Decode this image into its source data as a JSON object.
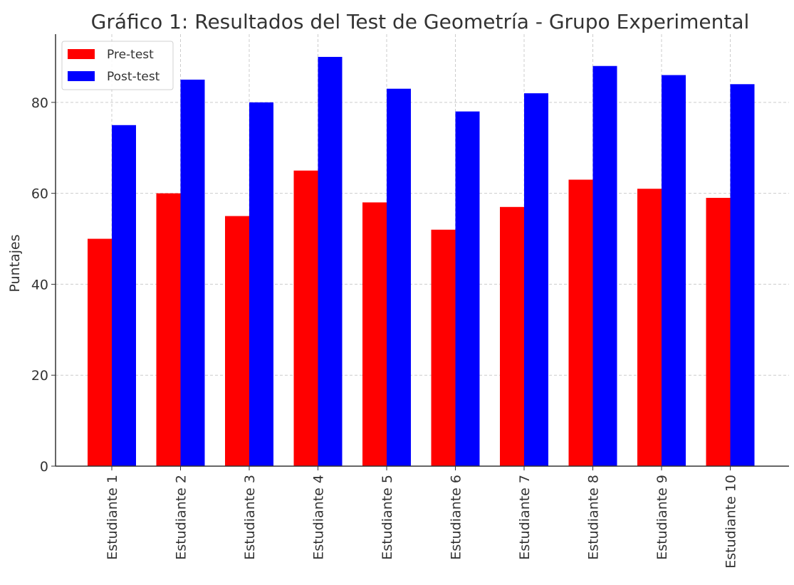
{
  "chart_data": {
    "type": "bar",
    "title": "Gráfico 1: Resultados del Test de Geometría - Grupo Experimental",
    "y_label": "Puntajes",
    "categories": [
      "Estudiante 1",
      "Estudiante 2",
      "Estudiante 3",
      "Estudiante 4",
      "Estudiante 5",
      "Estudiante 6",
      "Estudiante 7",
      "Estudiante 8",
      "Estudiante 9",
      "Estudiante 10"
    ],
    "series": [
      {
        "name": "Pre-test",
        "color": "#ff0000",
        "values": [
          50,
          60,
          55,
          65,
          58,
          52,
          57,
          63,
          61,
          59
        ]
      },
      {
        "name": "Post-test",
        "color": "#0000ff",
        "values": [
          75,
          85,
          80,
          90,
          83,
          78,
          82,
          88,
          86,
          84
        ]
      }
    ],
    "ylim": [
      0,
      95
    ],
    "yticks": [
      0,
      20,
      40,
      60,
      80
    ],
    "grid": true,
    "legend": "upper left"
  }
}
